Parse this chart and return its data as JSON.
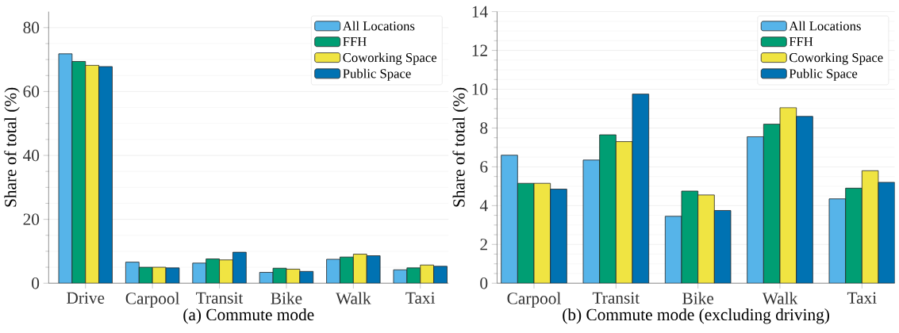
{
  "chart_data": [
    {
      "type": "bar",
      "xlabel": "(a) Commute mode",
      "ylabel": "Share of total (%)",
      "categories": [
        "Drive",
        "Carpool",
        "Transit",
        "Bike",
        "Walk",
        "Taxi"
      ],
      "series": [
        {
          "name": "All Locations",
          "color": "#56b4e9",
          "values": [
            71.8,
            6.6,
            6.3,
            3.4,
            7.5,
            4.2
          ]
        },
        {
          "name": "FFH",
          "color": "#009e73",
          "values": [
            69.4,
            5.0,
            7.6,
            4.7,
            8.2,
            4.8
          ]
        },
        {
          "name": "Coworking Space",
          "color": "#f0e442",
          "values": [
            68.2,
            5.0,
            7.3,
            4.4,
            9.1,
            5.7
          ]
        },
        {
          "name": "Public Space",
          "color": "#0072b2",
          "values": [
            67.8,
            4.8,
            9.7,
            3.7,
            8.6,
            5.3
          ]
        }
      ],
      "ylim": [
        0,
        85
      ],
      "yticks": [
        0,
        20,
        40,
        60,
        80
      ],
      "grid": true,
      "legend": "top right"
    },
    {
      "type": "bar",
      "xlabel": "(b) Commute mode (excluding driving)",
      "ylabel": "Share of total (%)",
      "categories": [
        "Carpool",
        "Transit",
        "Bike",
        "Walk",
        "Taxi"
      ],
      "series": [
        {
          "name": "All Locations",
          "color": "#56b4e9",
          "values": [
            6.6,
            6.35,
            3.45,
            7.55,
            4.35
          ]
        },
        {
          "name": "FFH",
          "color": "#009e73",
          "values": [
            5.15,
            7.65,
            4.75,
            8.2,
            4.9
          ]
        },
        {
          "name": "Coworking Space",
          "color": "#f0e442",
          "values": [
            5.15,
            7.3,
            4.55,
            9.05,
            5.8
          ]
        },
        {
          "name": "Public Space",
          "color": "#0072b2",
          "values": [
            4.85,
            9.75,
            3.75,
            8.6,
            5.2
          ]
        }
      ],
      "ylim": [
        0,
        14
      ],
      "yticks": [
        0,
        2,
        4,
        6,
        8,
        10,
        12,
        14
      ],
      "grid": true,
      "legend": "top right"
    }
  ]
}
